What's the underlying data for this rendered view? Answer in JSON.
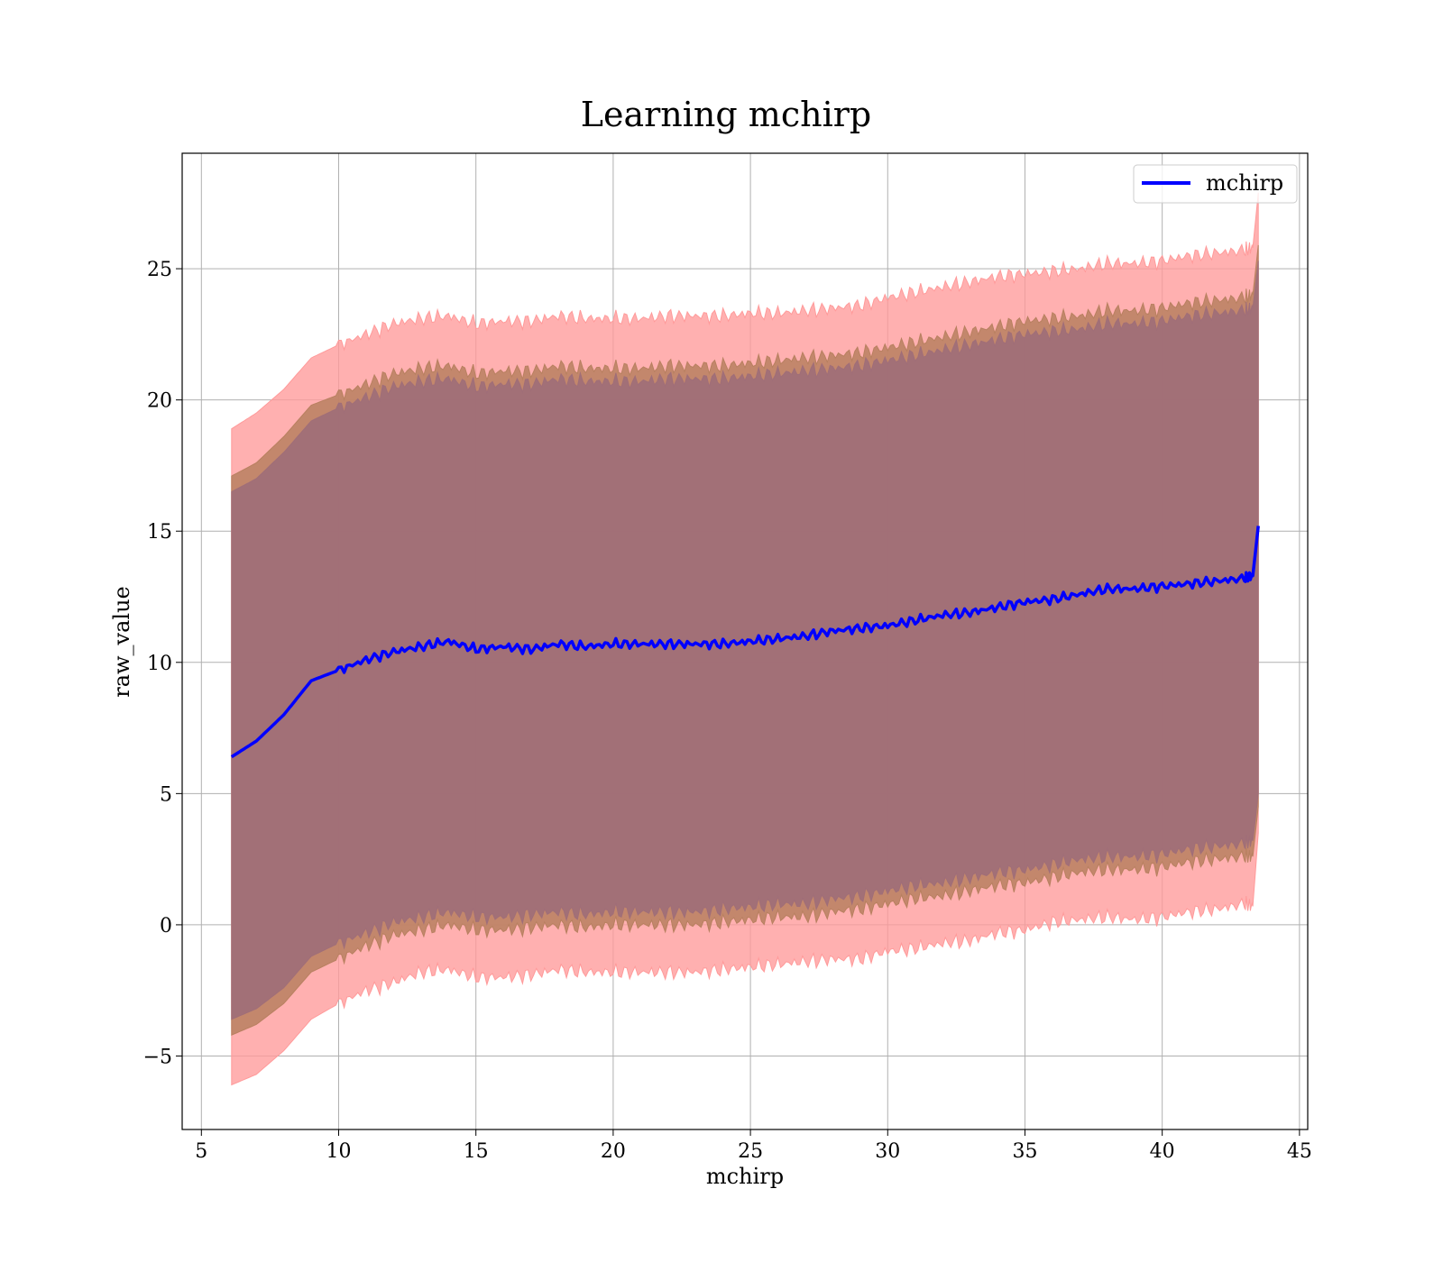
{
  "chart_data": {
    "type": "line",
    "title": "Learning mchirp",
    "xlabel": "mchirp",
    "ylabel": "raw_value",
    "xlim": [
      4.3,
      45.3
    ],
    "ylim": [
      -7.8,
      29.4
    ],
    "x_ticks": [
      5,
      10,
      15,
      20,
      25,
      30,
      35,
      40,
      45
    ],
    "y_ticks": [
      -5,
      0,
      5,
      10,
      15,
      20,
      25
    ],
    "x_tick_labels": [
      "5",
      "10",
      "15",
      "20",
      "25",
      "30",
      "35",
      "40",
      "45"
    ],
    "y_tick_labels": [
      "−5",
      "0",
      "5",
      "10",
      "15",
      "20",
      "25"
    ],
    "grid": true,
    "legend": {
      "position": "top-right",
      "entries": [
        "mchirp"
      ]
    },
    "colors": {
      "line": "#0000ff",
      "band_outer": "#ff9a9a",
      "band_middle": "#b88060",
      "band_inner": "#a06e78"
    },
    "series": [
      {
        "name": "mchirp",
        "x": [
          6.1,
          7,
          8,
          9,
          10,
          11,
          12,
          13,
          14,
          15,
          16,
          17,
          18,
          19,
          20,
          21,
          22,
          23,
          24,
          25,
          26,
          27,
          28,
          29,
          30,
          31,
          32,
          33,
          34,
          35,
          36,
          37,
          38,
          39,
          40,
          41,
          42,
          43,
          43.3,
          43.5
        ],
        "y": [
          6.4,
          7.0,
          8.0,
          9.3,
          9.7,
          10.1,
          10.4,
          10.6,
          10.8,
          10.5,
          10.6,
          10.5,
          10.7,
          10.6,
          10.7,
          10.7,
          10.7,
          10.7,
          10.7,
          10.8,
          10.9,
          11.0,
          11.2,
          11.3,
          11.4,
          11.6,
          11.8,
          11.9,
          12.1,
          12.3,
          12.4,
          12.6,
          12.8,
          12.8,
          12.9,
          13.0,
          13.1,
          13.2,
          13.3,
          15.2
        ]
      }
    ],
    "bands": [
      {
        "level": "outer",
        "x": [
          6.1,
          7,
          8,
          9,
          10,
          11,
          12,
          13,
          14,
          15,
          16,
          17,
          18,
          19,
          20,
          21,
          22,
          23,
          24,
          25,
          26,
          27,
          28,
          29,
          30,
          31,
          32,
          33,
          34,
          35,
          36,
          37,
          38,
          39,
          40,
          41,
          42,
          43,
          43.3,
          43.5
        ],
        "lower": [
          -6.1,
          -5.7,
          -4.8,
          -3.6,
          -3.0,
          -2.5,
          -2.2,
          -1.8,
          -1.7,
          -2.0,
          -2.0,
          -1.9,
          -1.7,
          -1.8,
          -1.8,
          -1.8,
          -1.8,
          -1.8,
          -1.7,
          -1.6,
          -1.5,
          -1.4,
          -1.3,
          -1.3,
          -1.0,
          -0.9,
          -0.7,
          -0.6,
          -0.3,
          -0.2,
          0.1,
          0.2,
          0.3,
          0.2,
          0.3,
          0.5,
          0.6,
          0.8,
          0.7,
          3.5
        ],
        "upper": [
          18.9,
          19.5,
          20.4,
          21.6,
          22.1,
          22.5,
          22.9,
          23.1,
          23.2,
          22.9,
          23.0,
          23.0,
          23.2,
          23.1,
          23.1,
          23.1,
          23.2,
          23.2,
          23.2,
          23.3,
          23.3,
          23.4,
          23.5,
          23.6,
          23.9,
          24.1,
          24.3,
          24.5,
          24.7,
          24.8,
          24.9,
          25.0,
          25.2,
          25.2,
          25.3,
          25.5,
          25.6,
          25.7,
          25.8,
          27.9
        ]
      },
      {
        "level": "middle",
        "x": [
          6.1,
          7,
          8,
          9,
          10,
          11,
          12,
          13,
          14,
          15,
          16,
          17,
          18,
          19,
          20,
          21,
          22,
          23,
          24,
          25,
          26,
          27,
          28,
          29,
          30,
          31,
          32,
          33,
          34,
          35,
          36,
          37,
          38,
          39,
          40,
          41,
          42,
          43,
          43.3,
          43.5
        ],
        "lower": [
          -4.2,
          -3.8,
          -3.0,
          -1.8,
          -1.3,
          -0.8,
          -0.4,
          -0.2,
          0.0,
          -0.2,
          -0.2,
          -0.1,
          0.0,
          -0.1,
          0.0,
          0.0,
          0.0,
          0.0,
          0.1,
          0.2,
          0.3,
          0.3,
          0.5,
          0.6,
          0.8,
          1.0,
          1.1,
          1.3,
          1.5,
          1.6,
          1.8,
          2.0,
          2.1,
          2.1,
          2.2,
          2.4,
          2.5,
          2.6,
          2.6,
          4.5
        ],
        "upper": [
          17.1,
          17.6,
          18.6,
          19.8,
          20.2,
          20.6,
          21.0,
          21.2,
          21.3,
          21.0,
          21.1,
          21.1,
          21.3,
          21.2,
          21.2,
          21.2,
          21.3,
          21.3,
          21.3,
          21.4,
          21.5,
          21.6,
          21.7,
          21.8,
          22.0,
          22.2,
          22.4,
          22.6,
          22.8,
          23.0,
          23.1,
          23.2,
          23.4,
          23.4,
          23.5,
          23.7,
          23.8,
          23.9,
          24.0,
          25.9
        ]
      },
      {
        "level": "inner",
        "x": [
          6.1,
          7,
          8,
          9,
          10,
          11,
          12,
          13,
          14,
          15,
          16,
          17,
          18,
          19,
          20,
          21,
          22,
          23,
          24,
          25,
          26,
          27,
          28,
          29,
          30,
          31,
          32,
          33,
          34,
          35,
          36,
          37,
          38,
          39,
          40,
          41,
          42,
          43,
          43.3,
          43.5
        ],
        "lower": [
          -3.6,
          -3.2,
          -2.4,
          -1.2,
          -0.7,
          -0.3,
          0.1,
          0.3,
          0.5,
          0.3,
          0.3,
          0.4,
          0.5,
          0.4,
          0.5,
          0.5,
          0.5,
          0.5,
          0.6,
          0.7,
          0.8,
          0.8,
          1.0,
          1.1,
          1.3,
          1.5,
          1.6,
          1.8,
          2.0,
          2.1,
          2.3,
          2.5,
          2.6,
          2.6,
          2.7,
          2.9,
          3.0,
          3.1,
          3.2,
          5.0
        ],
        "upper": [
          16.5,
          17.0,
          18.0,
          19.2,
          19.7,
          20.1,
          20.5,
          20.7,
          20.8,
          20.5,
          20.6,
          20.6,
          20.8,
          20.7,
          20.7,
          20.7,
          20.8,
          20.8,
          20.8,
          20.9,
          21.0,
          21.1,
          21.2,
          21.3,
          21.5,
          21.7,
          21.9,
          22.1,
          22.3,
          22.5,
          22.6,
          22.7,
          22.9,
          22.9,
          23.0,
          23.2,
          23.3,
          23.4,
          23.5,
          25.3
        ]
      }
    ]
  }
}
